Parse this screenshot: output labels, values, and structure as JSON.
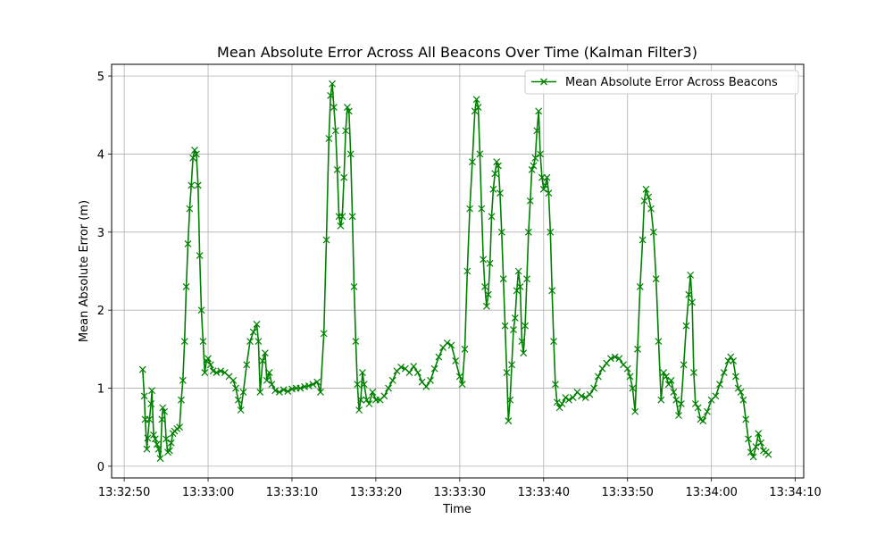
{
  "chart_data": {
    "type": "line",
    "title": "Mean Absolute Error Across All Beacons Over Time (Kalman Filter3)",
    "xlabel": "Time",
    "ylabel": "Mean Absolute Error (m)",
    "x_unit": "time",
    "xlim": [
      "13:32:48.5",
      "13:34:11.0"
    ],
    "ylim": [
      -0.15,
      5.15
    ],
    "x_ticks": [
      "13:32:50",
      "13:33:00",
      "13:33:10",
      "13:33:20",
      "13:33:30",
      "13:33:40",
      "13:33:50",
      "13:34:00",
      "13:34:10"
    ],
    "y_ticks": [
      0,
      1,
      2,
      3,
      4,
      5
    ],
    "grid": true,
    "legend": "upper right",
    "marker": "x",
    "color": "#008000",
    "series": [
      {
        "name": "Mean Absolute Error Across Beacons",
        "points": [
          [
            "13:32:52.2",
            1.24
          ],
          [
            "13:32:52.4",
            0.9
          ],
          [
            "13:32:52.5",
            0.6
          ],
          [
            "13:32:52.7",
            0.22
          ],
          [
            "13:32:52.8",
            0.36
          ],
          [
            "13:32:53.0",
            0.6
          ],
          [
            "13:32:53.2",
            0.8
          ],
          [
            "13:32:53.3",
            0.97
          ],
          [
            "13:32:53.5",
            0.4
          ],
          [
            "13:32:53.7",
            0.35
          ],
          [
            "13:32:53.9",
            0.28
          ],
          [
            "13:32:54.1",
            0.22
          ],
          [
            "13:32:54.3",
            0.1
          ],
          [
            "13:32:54.5",
            0.6
          ],
          [
            "13:32:54.6",
            0.75
          ],
          [
            "13:32:54.8",
            0.7
          ],
          [
            "13:32:55.0",
            0.35
          ],
          [
            "13:32:55.2",
            0.18
          ],
          [
            "13:32:55.4",
            0.2
          ],
          [
            "13:32:55.6",
            0.3
          ],
          [
            "13:32:55.8",
            0.42
          ],
          [
            "13:32:56.0",
            0.45
          ],
          [
            "13:32:56.3",
            0.48
          ],
          [
            "13:32:56.6",
            0.5
          ],
          [
            "13:32:56.8",
            0.85
          ],
          [
            "13:32:57.0",
            1.1
          ],
          [
            "13:32:57.2",
            1.6
          ],
          [
            "13:32:57.4",
            2.3
          ],
          [
            "13:32:57.6",
            2.85
          ],
          [
            "13:32:57.8",
            3.3
          ],
          [
            "13:32:58.0",
            3.6
          ],
          [
            "13:32:58.2",
            3.95
          ],
          [
            "13:32:58.4",
            4.05
          ],
          [
            "13:32:58.6",
            4.0
          ],
          [
            "13:32:58.8",
            3.6
          ],
          [
            "13:32:59.0",
            2.7
          ],
          [
            "13:32:59.2",
            2.0
          ],
          [
            "13:32:59.4",
            1.6
          ],
          [
            "13:32:59.6",
            1.2
          ],
          [
            "13:32:59.8",
            1.35
          ],
          [
            "13:33:00.0",
            1.38
          ],
          [
            "13:33:00.3",
            1.3
          ],
          [
            "13:33:00.6",
            1.22
          ],
          [
            "13:33:01.0",
            1.2
          ],
          [
            "13:33:01.5",
            1.22
          ],
          [
            "13:33:02.0",
            1.2
          ],
          [
            "13:33:02.5",
            1.15
          ],
          [
            "13:33:03.0",
            1.1
          ],
          [
            "13:33:03.3",
            1.0
          ],
          [
            "13:33:03.6",
            0.85
          ],
          [
            "13:33:03.9",
            0.72
          ],
          [
            "13:33:04.2",
            0.95
          ],
          [
            "13:33:04.6",
            1.3
          ],
          [
            "13:33:05.0",
            1.6
          ],
          [
            "13:33:05.4",
            1.72
          ],
          [
            "13:33:05.8",
            1.82
          ],
          [
            "13:33:06.0",
            1.6
          ],
          [
            "13:33:06.2",
            0.95
          ],
          [
            "13:33:06.5",
            1.35
          ],
          [
            "13:33:06.8",
            1.45
          ],
          [
            "13:33:07.0",
            1.1
          ],
          [
            "13:33:07.3",
            1.2
          ],
          [
            "13:33:07.6",
            1.05
          ],
          [
            "13:33:08.0",
            0.97
          ],
          [
            "13:33:08.5",
            0.95
          ],
          [
            "13:33:09.0",
            0.98
          ],
          [
            "13:33:09.5",
            0.96
          ],
          [
            "13:33:10.0",
            0.99
          ],
          [
            "13:33:10.5",
            1.0
          ],
          [
            "13:33:11.0",
            1.0
          ],
          [
            "13:33:11.5",
            1.02
          ],
          [
            "13:33:12.0",
            1.03
          ],
          [
            "13:33:12.5",
            1.05
          ],
          [
            "13:33:13.0",
            1.08
          ],
          [
            "13:33:13.4",
            0.95
          ],
          [
            "13:33:13.8",
            1.7
          ],
          [
            "13:33:14.1",
            2.9
          ],
          [
            "13:33:14.4",
            4.2
          ],
          [
            "13:33:14.6",
            4.75
          ],
          [
            "13:33:14.8",
            4.9
          ],
          [
            "13:33:15.0",
            4.6
          ],
          [
            "13:33:15.2",
            4.3
          ],
          [
            "13:33:15.4",
            3.8
          ],
          [
            "13:33:15.6",
            3.2
          ],
          [
            "13:33:15.8",
            3.08
          ],
          [
            "13:33:16.0",
            3.2
          ],
          [
            "13:33:16.2",
            3.7
          ],
          [
            "13:33:16.4",
            4.3
          ],
          [
            "13:33:16.6",
            4.6
          ],
          [
            "13:33:16.8",
            4.55
          ],
          [
            "13:33:17.0",
            4.0
          ],
          [
            "13:33:17.2",
            3.2
          ],
          [
            "13:33:17.4",
            2.3
          ],
          [
            "13:33:17.6",
            1.6
          ],
          [
            "13:33:17.8",
            1.05
          ],
          [
            "13:33:18.0",
            0.72
          ],
          [
            "13:33:18.2",
            0.85
          ],
          [
            "13:33:18.4",
            1.2
          ],
          [
            "13:33:18.6",
            1.05
          ],
          [
            "13:33:18.9",
            0.85
          ],
          [
            "13:33:19.2",
            0.8
          ],
          [
            "13:33:19.6",
            0.95
          ],
          [
            "13:33:20.0",
            0.85
          ],
          [
            "13:33:20.5",
            0.85
          ],
          [
            "13:33:21.0",
            0.9
          ],
          [
            "13:33:21.5",
            1.0
          ],
          [
            "13:33:22.0",
            1.1
          ],
          [
            "13:33:22.5",
            1.22
          ],
          [
            "13:33:23.0",
            1.27
          ],
          [
            "13:33:23.5",
            1.25
          ],
          [
            "13:33:24.0",
            1.2
          ],
          [
            "13:33:24.5",
            1.28
          ],
          [
            "13:33:25.0",
            1.2
          ],
          [
            "13:33:25.5",
            1.08
          ],
          [
            "13:33:26.0",
            1.02
          ],
          [
            "13:33:26.5",
            1.1
          ],
          [
            "13:33:27.0",
            1.25
          ],
          [
            "13:33:27.5",
            1.4
          ],
          [
            "13:33:28.0",
            1.52
          ],
          [
            "13:33:28.5",
            1.58
          ],
          [
            "13:33:29.0",
            1.55
          ],
          [
            "13:33:29.5",
            1.35
          ],
          [
            "13:33:30.0",
            1.15
          ],
          [
            "13:33:30.3",
            1.05
          ],
          [
            "13:33:30.6",
            1.5
          ],
          [
            "13:33:30.9",
            2.5
          ],
          [
            "13:33:31.2",
            3.3
          ],
          [
            "13:33:31.5",
            3.9
          ],
          [
            "13:33:31.8",
            4.55
          ],
          [
            "13:33:32.0",
            4.7
          ],
          [
            "13:33:32.2",
            4.6
          ],
          [
            "13:33:32.4",
            4.0
          ],
          [
            "13:33:32.6",
            3.3
          ],
          [
            "13:33:32.8",
            2.65
          ],
          [
            "13:33:33.0",
            2.3
          ],
          [
            "13:33:33.2",
            2.05
          ],
          [
            "13:33:33.4",
            2.2
          ],
          [
            "13:33:33.6",
            2.6
          ],
          [
            "13:33:33.8",
            3.2
          ],
          [
            "13:33:34.0",
            3.55
          ],
          [
            "13:33:34.2",
            3.75
          ],
          [
            "13:33:34.4",
            3.9
          ],
          [
            "13:33:34.6",
            3.85
          ],
          [
            "13:33:34.8",
            3.5
          ],
          [
            "13:33:35.0",
            3.0
          ],
          [
            "13:33:35.2",
            2.4
          ],
          [
            "13:33:35.4",
            1.8
          ],
          [
            "13:33:35.6",
            1.2
          ],
          [
            "13:33:35.8",
            0.58
          ],
          [
            "13:33:36.0",
            0.85
          ],
          [
            "13:33:36.2",
            1.3
          ],
          [
            "13:33:36.4",
            1.75
          ],
          [
            "13:33:36.6",
            1.9
          ],
          [
            "13:33:36.8",
            2.25
          ],
          [
            "13:33:37.0",
            2.5
          ],
          [
            "13:33:37.2",
            2.3
          ],
          [
            "13:33:37.4",
            1.6
          ],
          [
            "13:33:37.6",
            1.45
          ],
          [
            "13:33:37.8",
            1.8
          ],
          [
            "13:33:38.0",
            2.4
          ],
          [
            "13:33:38.2",
            3.0
          ],
          [
            "13:33:38.4",
            3.4
          ],
          [
            "13:33:38.6",
            3.8
          ],
          [
            "13:33:38.8",
            3.85
          ],
          [
            "13:33:39.0",
            3.95
          ],
          [
            "13:33:39.2",
            4.3
          ],
          [
            "13:33:39.4",
            4.55
          ],
          [
            "13:33:39.6",
            4.0
          ],
          [
            "13:33:39.8",
            3.7
          ],
          [
            "13:33:40.0",
            3.55
          ],
          [
            "13:33:40.2",
            3.6
          ],
          [
            "13:33:40.4",
            3.7
          ],
          [
            "13:33:40.6",
            3.5
          ],
          [
            "13:33:40.8",
            3.0
          ],
          [
            "13:33:41.0",
            2.25
          ],
          [
            "13:33:41.2",
            1.6
          ],
          [
            "13:33:41.4",
            1.05
          ],
          [
            "13:33:41.6",
            0.82
          ],
          [
            "13:33:41.9",
            0.75
          ],
          [
            "13:33:42.2",
            0.8
          ],
          [
            "13:33:42.6",
            0.88
          ],
          [
            "13:33:43.0",
            0.85
          ],
          [
            "13:33:43.5",
            0.88
          ],
          [
            "13:33:44.0",
            0.95
          ],
          [
            "13:33:44.5",
            0.9
          ],
          [
            "13:33:45.0",
            0.88
          ],
          [
            "13:33:45.5",
            0.92
          ],
          [
            "13:33:46.0",
            1.0
          ],
          [
            "13:33:46.5",
            1.15
          ],
          [
            "13:33:47.0",
            1.25
          ],
          [
            "13:33:47.5",
            1.32
          ],
          [
            "13:33:48.0",
            1.38
          ],
          [
            "13:33:48.5",
            1.4
          ],
          [
            "13:33:49.0",
            1.38
          ],
          [
            "13:33:49.5",
            1.3
          ],
          [
            "13:33:50.0",
            1.25
          ],
          [
            "13:33:50.3",
            1.15
          ],
          [
            "13:33:50.6",
            1.0
          ],
          [
            "13:33:50.9",
            0.7
          ],
          [
            "13:33:51.2",
            1.5
          ],
          [
            "13:33:51.5",
            2.3
          ],
          [
            "13:33:51.8",
            2.9
          ],
          [
            "13:33:52.0",
            3.4
          ],
          [
            "13:33:52.2",
            3.55
          ],
          [
            "13:33:52.5",
            3.45
          ],
          [
            "13:33:52.8",
            3.3
          ],
          [
            "13:33:53.1",
            3.0
          ],
          [
            "13:33:53.4",
            2.4
          ],
          [
            "13:33:53.7",
            1.6
          ],
          [
            "13:33:54.0",
            0.85
          ],
          [
            "13:33:54.3",
            1.2
          ],
          [
            "13:33:54.6",
            1.15
          ],
          [
            "13:33:54.9",
            1.05
          ],
          [
            "13:33:55.2",
            1.1
          ],
          [
            "13:33:55.5",
            0.95
          ],
          [
            "13:33:55.8",
            0.85
          ],
          [
            "13:33:56.1",
            0.65
          ],
          [
            "13:33:56.4",
            0.8
          ],
          [
            "13:33:56.7",
            1.3
          ],
          [
            "13:33:57.0",
            1.8
          ],
          [
            "13:33:57.3",
            2.2
          ],
          [
            "13:33:57.5",
            2.45
          ],
          [
            "13:33:57.7",
            2.1
          ],
          [
            "13:33:57.9",
            1.2
          ],
          [
            "13:33:58.1",
            0.8
          ],
          [
            "13:33:58.4",
            0.75
          ],
          [
            "13:33:58.7",
            0.6
          ],
          [
            "13:33:59.0",
            0.58
          ],
          [
            "13:33:59.5",
            0.7
          ],
          [
            "13:34:00.0",
            0.85
          ],
          [
            "13:34:00.5",
            0.9
          ],
          [
            "13:34:01.0",
            1.05
          ],
          [
            "13:34:01.5",
            1.2
          ],
          [
            "13:34:02.0",
            1.35
          ],
          [
            "13:34:02.3",
            1.4
          ],
          [
            "13:34:02.6",
            1.35
          ],
          [
            "13:34:02.9",
            1.15
          ],
          [
            "13:34:03.2",
            1.0
          ],
          [
            "13:34:03.5",
            0.95
          ],
          [
            "13:34:03.8",
            0.85
          ],
          [
            "13:34:04.1",
            0.6
          ],
          [
            "13:34:04.4",
            0.35
          ],
          [
            "13:34:04.7",
            0.18
          ],
          [
            "13:34:05.0",
            0.12
          ],
          [
            "13:34:05.3",
            0.25
          ],
          [
            "13:34:05.6",
            0.42
          ],
          [
            "13:34:05.9",
            0.3
          ],
          [
            "13:34:06.2",
            0.2
          ],
          [
            "13:34:06.5",
            0.18
          ],
          [
            "13:34:06.8",
            0.15
          ]
        ]
      }
    ]
  }
}
